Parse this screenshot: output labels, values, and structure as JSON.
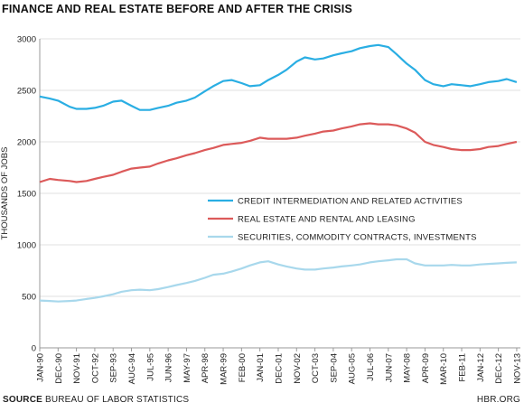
{
  "header": {
    "title": "FINANCE AND REAL ESTATE BEFORE AND AFTER THE CRISIS"
  },
  "footer": {
    "source_label": "SOURCE",
    "source_text": "BUREAU OF LABOR STATISTICS",
    "credit": "HBR.ORG"
  },
  "chart_data": {
    "type": "line",
    "title": "FINANCE AND REAL ESTATE BEFORE AND AFTER THE CRISIS",
    "xlabel": "",
    "ylabel": "THOUSANDS OF JOBS",
    "ylim": [
      0,
      3000
    ],
    "yticks": [
      0,
      500,
      1000,
      1500,
      2000,
      2500,
      3000
    ],
    "grid": true,
    "legend_position": "center-right",
    "xtick_labels": [
      "JAN-90",
      "DEC-90",
      "NOV-91",
      "OCT-92",
      "SEP-93",
      "AUG-94",
      "JUL-95",
      "JUN-96",
      "MAY-97",
      "APR-98",
      "MAR-99",
      "FEB-00",
      "JAN-01",
      "DEC-01",
      "NOV-02",
      "OCT-03",
      "SEP-04",
      "AUG-05",
      "JUL-06",
      "JUN-07",
      "MAY-08",
      "APR-09",
      "MAR-10",
      "FEB-11",
      "JAN-12",
      "DEC-12",
      "NOV-13"
    ],
    "series": [
      {
        "name": "CREDIT INTERMEDIATION AND RELATED ACTIVITIES",
        "color": "#2aaee3",
        "x": [
          "JAN-90",
          "JUL-90",
          "DEC-90",
          "JUL-91",
          "NOV-91",
          "MAY-92",
          "OCT-92",
          "MAR-93",
          "SEP-93",
          "FEB-94",
          "AUG-94",
          "JAN-95",
          "JUL-95",
          "DEC-95",
          "JUN-96",
          "NOV-96",
          "MAY-97",
          "OCT-97",
          "APR-98",
          "SEP-98",
          "MAR-99",
          "AUG-99",
          "FEB-00",
          "JUL-00",
          "JAN-01",
          "JUN-01",
          "DEC-01",
          "MAY-02",
          "NOV-02",
          "APR-03",
          "OCT-03",
          "MAR-04",
          "SEP-04",
          "FEB-05",
          "AUG-05",
          "JAN-06",
          "JUL-06",
          "DEC-06",
          "JUN-07",
          "NOV-07",
          "MAY-08",
          "OCT-08",
          "APR-09",
          "SEP-09",
          "MAR-10",
          "AUG-10",
          "FEB-11",
          "JUL-11",
          "JAN-12",
          "JUN-12",
          "DEC-12",
          "MAY-13",
          "NOV-13"
        ],
        "values": [
          2440,
          2420,
          2400,
          2340,
          2320,
          2320,
          2330,
          2350,
          2390,
          2400,
          2350,
          2310,
          2310,
          2330,
          2350,
          2380,
          2400,
          2430,
          2490,
          2540,
          2590,
          2600,
          2570,
          2540,
          2550,
          2600,
          2650,
          2700,
          2780,
          2820,
          2800,
          2810,
          2840,
          2860,
          2880,
          2910,
          2930,
          2940,
          2920,
          2850,
          2760,
          2700,
          2600,
          2560,
          2540,
          2560,
          2550,
          2540,
          2560,
          2580,
          2590,
          2610,
          2580
        ]
      },
      {
        "name": "REAL ESTATE AND RENTAL AND LEASING",
        "color": "#dc5a5a",
        "x": [
          "JAN-90",
          "JUL-90",
          "DEC-90",
          "JUL-91",
          "NOV-91",
          "MAY-92",
          "OCT-92",
          "MAR-93",
          "SEP-93",
          "FEB-94",
          "AUG-94",
          "JAN-95",
          "JUL-95",
          "DEC-95",
          "JUN-96",
          "NOV-96",
          "MAY-97",
          "OCT-97",
          "APR-98",
          "SEP-98",
          "MAR-99",
          "AUG-99",
          "FEB-00",
          "JUL-00",
          "JAN-01",
          "JUN-01",
          "DEC-01",
          "MAY-02",
          "NOV-02",
          "APR-03",
          "OCT-03",
          "MAR-04",
          "SEP-04",
          "FEB-05",
          "AUG-05",
          "JAN-06",
          "JUL-06",
          "DEC-06",
          "JUN-07",
          "NOV-07",
          "MAY-08",
          "OCT-08",
          "APR-09",
          "SEP-09",
          "MAR-10",
          "AUG-10",
          "FEB-11",
          "JUL-11",
          "JAN-12",
          "JUN-12",
          "DEC-12",
          "MAY-13",
          "NOV-13"
        ],
        "values": [
          1610,
          1640,
          1630,
          1620,
          1610,
          1620,
          1640,
          1660,
          1680,
          1710,
          1740,
          1750,
          1760,
          1790,
          1820,
          1840,
          1870,
          1890,
          1920,
          1940,
          1970,
          1980,
          1990,
          2010,
          2040,
          2030,
          2030,
          2030,
          2040,
          2060,
          2080,
          2100,
          2110,
          2130,
          2150,
          2170,
          2180,
          2170,
          2170,
          2160,
          2130,
          2090,
          2000,
          1970,
          1950,
          1930,
          1920,
          1920,
          1930,
          1950,
          1960,
          1980,
          2000
        ]
      },
      {
        "name": "SECURITIES, COMMODITY CONTRACTS, INVESTMENTS",
        "color": "#a8d8ec",
        "x": [
          "JAN-90",
          "JUL-90",
          "DEC-90",
          "JUL-91",
          "NOV-91",
          "MAY-92",
          "OCT-92",
          "MAR-93",
          "SEP-93",
          "FEB-94",
          "AUG-94",
          "JAN-95",
          "JUL-95",
          "DEC-95",
          "JUN-96",
          "NOV-96",
          "MAY-97",
          "OCT-97",
          "APR-98",
          "SEP-98",
          "MAR-99",
          "AUG-99",
          "FEB-00",
          "JUL-00",
          "JAN-01",
          "JUN-01",
          "DEC-01",
          "MAY-02",
          "NOV-02",
          "APR-03",
          "OCT-03",
          "MAR-04",
          "SEP-04",
          "FEB-05",
          "AUG-05",
          "JAN-06",
          "JUL-06",
          "DEC-06",
          "JUN-07",
          "NOV-07",
          "MAY-08",
          "OCT-08",
          "APR-09",
          "SEP-09",
          "MAR-10",
          "AUG-10",
          "FEB-11",
          "JUL-11",
          "JAN-12",
          "JUN-12",
          "DEC-12",
          "MAY-13",
          "NOV-13"
        ],
        "values": [
          460,
          455,
          450,
          455,
          460,
          475,
          485,
          500,
          520,
          545,
          560,
          565,
          560,
          570,
          590,
          610,
          630,
          650,
          680,
          710,
          720,
          740,
          770,
          800,
          830,
          840,
          810,
          790,
          770,
          760,
          760,
          770,
          780,
          790,
          800,
          810,
          830,
          840,
          850,
          860,
          860,
          820,
          800,
          800,
          800,
          805,
          800,
          800,
          810,
          815,
          820,
          825,
          830
        ]
      }
    ]
  }
}
